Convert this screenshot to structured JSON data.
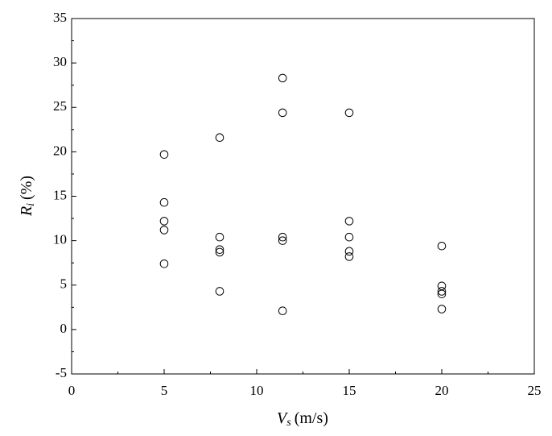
{
  "chart_data": {
    "type": "scatter",
    "x_label": {
      "symbol": "V",
      "subscript": "s",
      "unit": "(m/s)"
    },
    "y_label": {
      "symbol": "R",
      "subscript": "i",
      "unit": "(%)"
    },
    "x": [
      5,
      5,
      5,
      5,
      5,
      8,
      8,
      8,
      8,
      8,
      11.4,
      11.4,
      11.4,
      11.4,
      11.4,
      15,
      15,
      15,
      15,
      15,
      20,
      20,
      20,
      20,
      20
    ],
    "values": [
      19.7,
      14.3,
      12.2,
      11.2,
      7.4,
      21.6,
      10.4,
      9.0,
      8.7,
      4.3,
      28.3,
      24.4,
      10.4,
      10.0,
      2.1,
      24.4,
      12.2,
      10.4,
      8.8,
      8.2,
      9.4,
      4.9,
      4.3,
      4.0,
      2.3
    ],
    "color": "#000000",
    "xlim": [
      0,
      25
    ],
    "xticks": [
      0,
      5,
      10,
      15,
      20,
      25
    ],
    "ylim": [
      -5,
      35
    ],
    "yticks": [
      -5,
      0,
      5,
      10,
      15,
      20,
      25,
      30,
      35
    ],
    "grid": false
  }
}
